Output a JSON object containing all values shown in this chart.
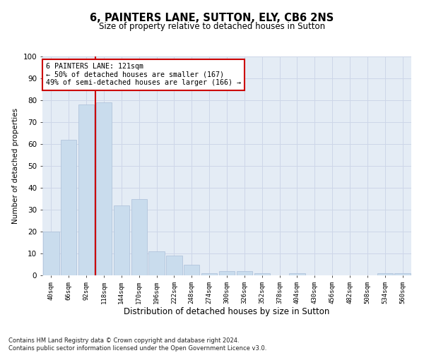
{
  "title": "6, PAINTERS LANE, SUTTON, ELY, CB6 2NS",
  "subtitle": "Size of property relative to detached houses in Sutton",
  "xlabel": "Distribution of detached houses by size in Sutton",
  "ylabel": "Number of detached properties",
  "categories": [
    "40sqm",
    "66sqm",
    "92sqm",
    "118sqm",
    "144sqm",
    "170sqm",
    "196sqm",
    "222sqm",
    "248sqm",
    "274sqm",
    "300sqm",
    "326sqm",
    "352sqm",
    "378sqm",
    "404sqm",
    "430sqm",
    "456sqm",
    "482sqm",
    "508sqm",
    "534sqm",
    "560sqm"
  ],
  "values": [
    20,
    62,
    78,
    79,
    32,
    35,
    11,
    9,
    5,
    1,
    2,
    2,
    1,
    0,
    1,
    0,
    0,
    0,
    0,
    1,
    1
  ],
  "bar_color": "#c9dced",
  "bar_edge_color": "#aabfd8",
  "grid_color": "#cdd6e8",
  "background_color": "#e4ecf5",
  "vline_x": 2.5,
  "vline_color": "#cc0000",
  "annotation_text": "6 PAINTERS LANE: 121sqm\n← 50% of detached houses are smaller (167)\n49% of semi-detached houses are larger (166) →",
  "annotation_box_color": "#ffffff",
  "annotation_box_edge": "#cc0000",
  "ylim": [
    0,
    100
  ],
  "yticks": [
    0,
    10,
    20,
    30,
    40,
    50,
    60,
    70,
    80,
    90,
    100
  ],
  "footer_line1": "Contains HM Land Registry data © Crown copyright and database right 2024.",
  "footer_line2": "Contains public sector information licensed under the Open Government Licence v3.0."
}
